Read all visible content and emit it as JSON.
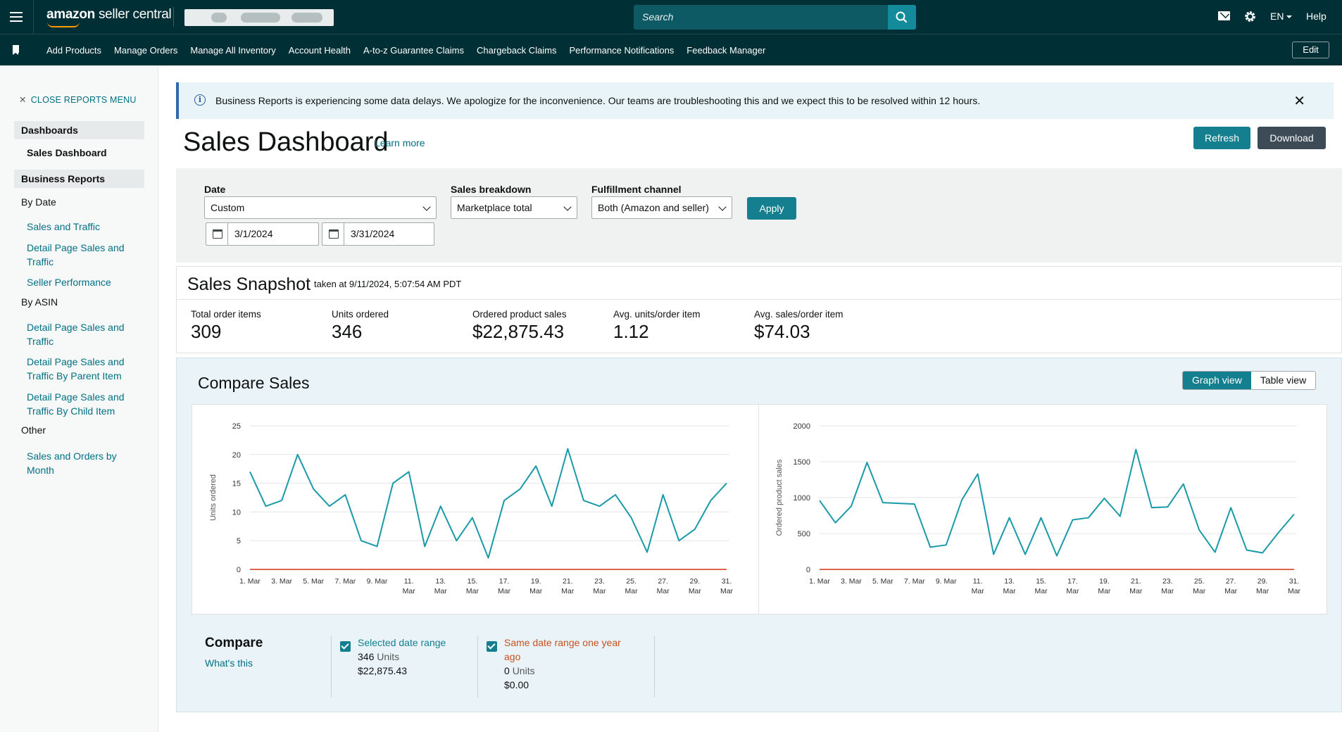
{
  "topbar": {
    "logo_brand": "amazon",
    "logo_product": "seller central",
    "search_placeholder": "Search",
    "language": "EN",
    "help": "Help"
  },
  "nav": {
    "links": [
      "Add Products",
      "Manage Orders",
      "Manage All Inventory",
      "Account Health",
      "A-to-z Guarantee Claims",
      "Chargeback Claims",
      "Performance Notifications",
      "Feedback Manager"
    ],
    "edit": "Edit"
  },
  "sidebar": {
    "close_menu": "CLOSE REPORTS MENU",
    "dashboards_head": "Dashboards",
    "sales_dashboard": "Sales Dashboard",
    "business_reports_head": "Business Reports",
    "by_date": "By Date",
    "by_date_items": [
      "Sales and Traffic",
      "Detail Page Sales and Traffic",
      "Seller Performance"
    ],
    "by_asin": "By ASIN",
    "by_asin_items": [
      "Detail Page Sales and Traffic",
      "Detail Page Sales and Traffic By Parent Item",
      "Detail Page Sales and Traffic By Child Item"
    ],
    "other": "Other",
    "other_items": [
      "Sales and Orders by Month"
    ]
  },
  "banner": {
    "text": "Business Reports is experiencing some data delays. We apologize for the inconvenience. Our teams are troubleshooting this and we expect this to be resolved within 12 hours."
  },
  "page": {
    "title": "Sales Dashboard",
    "learn_more": "Learn more",
    "refresh": "Refresh",
    "download": "Download"
  },
  "filters": {
    "date_label": "Date",
    "date_value": "Custom",
    "start_date": "3/1/2024",
    "end_date": "3/31/2024",
    "breakdown_label": "Sales breakdown",
    "breakdown_value": "Marketplace total",
    "fulfillment_label": "Fulfillment channel",
    "fulfillment_value": "Both (Amazon and seller)",
    "apply": "Apply"
  },
  "snapshot": {
    "title": "Sales Snapshot",
    "taken": "taken at 9/11/2024, 5:07:54 AM PDT",
    "metrics": [
      {
        "label": "Total order items",
        "value": "309"
      },
      {
        "label": "Units ordered",
        "value": "346"
      },
      {
        "label": "Ordered product sales",
        "value": "$22,875.43"
      },
      {
        "label": "Avg. units/order item",
        "value": "1.12"
      },
      {
        "label": "Avg. sales/order item",
        "value": "$74.03"
      }
    ]
  },
  "compare": {
    "title": "Compare Sales",
    "graph_view": "Graph view",
    "table_view": "Table view",
    "compare_label": "Compare",
    "whats_this": "What's this",
    "selected_name": "Selected date range",
    "selected_units": "346",
    "selected_sales": "$22,875.43",
    "prior_name": "Same date range one year ago",
    "prior_units": "0",
    "prior_sales": "$0.00",
    "units_word": "Units"
  },
  "colors": {
    "selected": "#1a9aa8",
    "prior": "#d13212"
  },
  "chart_data": [
    {
      "type": "line",
      "ylabel": "Units ordered",
      "ylim": [
        0,
        25
      ],
      "yticks": [
        0,
        5,
        10,
        15,
        20,
        25
      ],
      "xticks": [
        "1. Mar",
        "3. Mar",
        "5. Mar",
        "7. Mar",
        "9. Mar",
        "11. Mar",
        "13. Mar",
        "15. Mar",
        "17. Mar",
        "19. Mar",
        "21. Mar",
        "23. Mar",
        "25. Mar",
        "27. Mar",
        "29. Mar",
        "31. Mar"
      ],
      "x": [
        1,
        2,
        3,
        4,
        5,
        6,
        7,
        8,
        9,
        10,
        11,
        12,
        13,
        14,
        15,
        16,
        17,
        18,
        19,
        20,
        21,
        22,
        23,
        24,
        25,
        26,
        27,
        28,
        29,
        30,
        31
      ],
      "series": [
        {
          "name": "Selected date range",
          "values": [
            17,
            11,
            12,
            20,
            14,
            11,
            13,
            5,
            4,
            15,
            17,
            4,
            11,
            5,
            9,
            2,
            12,
            14,
            18,
            11,
            21,
            12,
            11,
            13,
            9,
            3,
            13,
            5,
            7,
            12,
            15
          ]
        },
        {
          "name": "Same date range one year ago",
          "values": [
            0,
            0,
            0,
            0,
            0,
            0,
            0,
            0,
            0,
            0,
            0,
            0,
            0,
            0,
            0,
            0,
            0,
            0,
            0,
            0,
            0,
            0,
            0,
            0,
            0,
            0,
            0,
            0,
            0,
            0,
            0
          ]
        }
      ]
    },
    {
      "type": "line",
      "ylabel": "Ordered product sales",
      "ylim": [
        0,
        2000
      ],
      "yticks": [
        0,
        500,
        1000,
        1500,
        2000
      ],
      "xticks": [
        "1. Mar",
        "3. Mar",
        "5. Mar",
        "7. Mar",
        "9. Mar",
        "11. Mar",
        "13. Mar",
        "15. Mar",
        "17. Mar",
        "19. Mar",
        "21. Mar",
        "23. Mar",
        "25. Mar",
        "27. Mar",
        "29. Mar",
        "31. Mar"
      ],
      "x": [
        1,
        2,
        3,
        4,
        5,
        6,
        7,
        8,
        9,
        10,
        11,
        12,
        13,
        14,
        15,
        16,
        17,
        18,
        19,
        20,
        21,
        22,
        23,
        24,
        25,
        26,
        27,
        28,
        29,
        30,
        31
      ],
      "series": [
        {
          "name": "Selected date range",
          "values": [
            960,
            650,
            880,
            1490,
            930,
            920,
            910,
            310,
            340,
            970,
            1330,
            210,
            720,
            210,
            720,
            190,
            690,
            720,
            990,
            740,
            1670,
            860,
            870,
            1190,
            550,
            240,
            860,
            270,
            230,
            510,
            770
          ]
        },
        {
          "name": "Same date range one year ago",
          "values": [
            0,
            0,
            0,
            0,
            0,
            0,
            0,
            0,
            0,
            0,
            0,
            0,
            0,
            0,
            0,
            0,
            0,
            0,
            0,
            0,
            0,
            0,
            0,
            0,
            0,
            0,
            0,
            0,
            0,
            0,
            0
          ]
        }
      ]
    }
  ]
}
